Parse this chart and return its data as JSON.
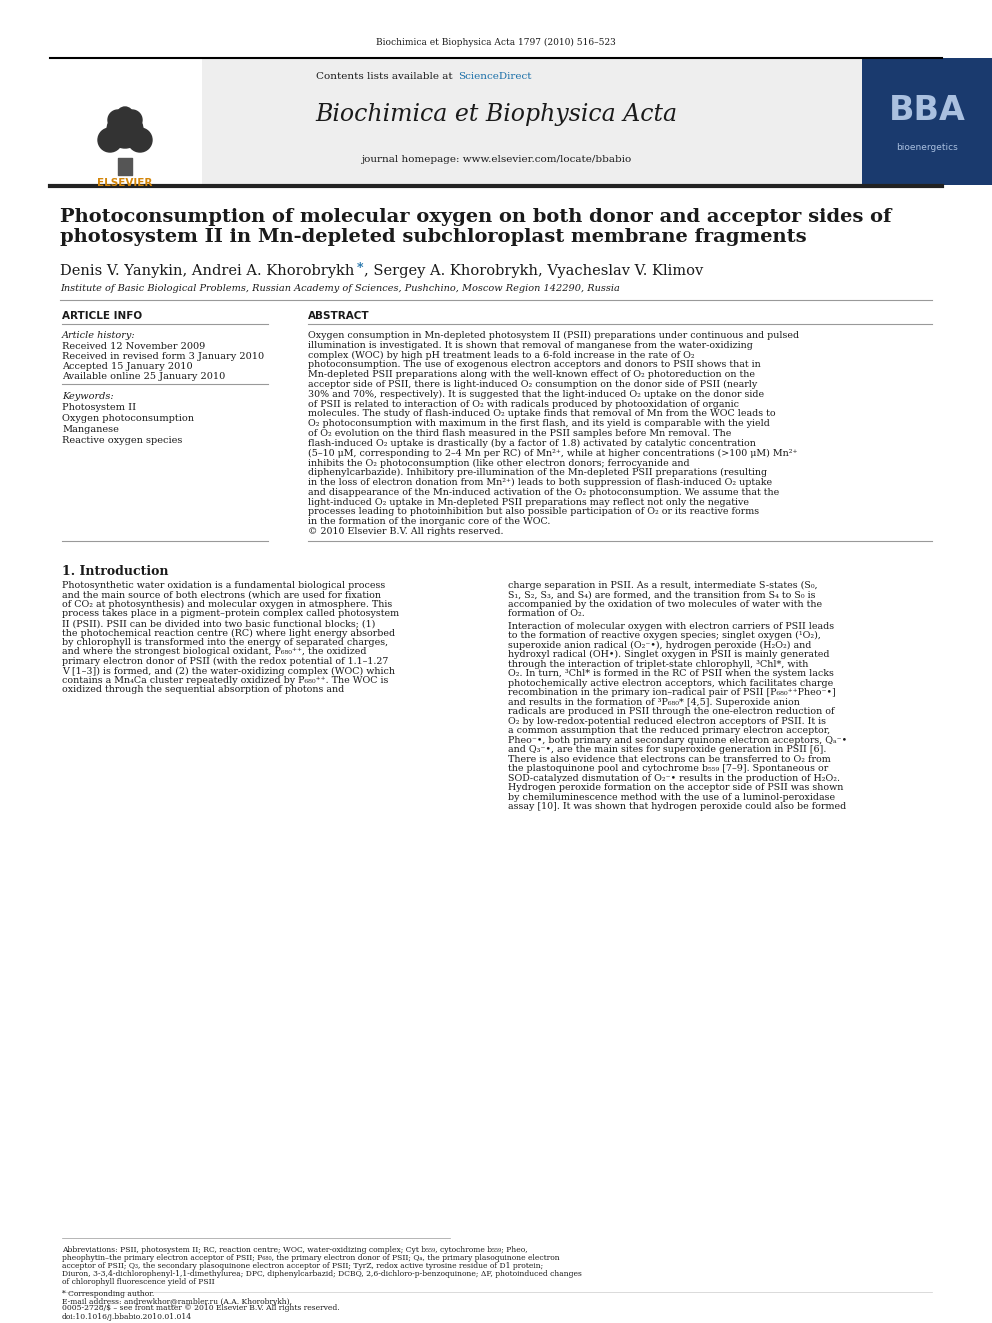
{
  "journal_info": "Biochimica et Biophysica Acta 1797 (2010) 516–523",
  "contents_line": "Contents lists available at ScienceDirect",
  "sciencedirect": "ScienceDirect",
  "journal_name": "Biochimica et Biophysica Acta",
  "journal_homepage": "journal homepage: www.elsevier.com/locate/bbabio",
  "title_line1": "Photoconsumption of molecular oxygen on both donor and acceptor sides of",
  "title_line2": "photosystem II in Mn-depleted subchloroplast membrane fragments",
  "authors_pre": "Denis V. Yanykin, Andrei A. Khorobrykh ",
  "authors_star": "*",
  "authors_post": ", Sergey A. Khorobrykh, Vyacheslav V. Klimov",
  "affiliation": "Institute of Basic Biological Problems, Russian Academy of Sciences, Pushchino, Moscow Region 142290, Russia",
  "article_info_header": "ARTICLE INFO",
  "abstract_header": "ABSTRACT",
  "article_history_label": "Article history:",
  "received": "Received 12 November 2009",
  "revised": "Received in revised form 3 January 2010",
  "accepted": "Accepted 15 January 2010",
  "available": "Available online 25 January 2010",
  "keywords_label": "Keywords:",
  "keywords": [
    "Photosystem II",
    "Oxygen photoconsumption",
    "Manganese",
    "Reactive oxygen species"
  ],
  "abstract_text": "Oxygen consumption in Mn-depleted photosystem II (PSII) preparations under continuous and pulsed illumination is investigated. It is shown that removal of manganese from the water-oxidizing complex (WOC) by high pH treatment leads to a 6-fold increase in the rate of O₂ photoconsumption. The use of exogenous electron acceptors and donors to PSII shows that in Mn-depleted PSII preparations along with the well-known effect of O₂ photoreduction on the acceptor side of PSII, there is light-induced O₂ consumption on the donor side of PSII (nearly 30% and 70%, respectively). It is suggested that the light-induced O₂ uptake on the donor side of PSII is related to interaction of O₂ with radicals produced by photooxidation of organic molecules. The study of flash-induced O₂ uptake finds that removal of Mn from the WOC leads to O₂ photoconsumption with maximum in the first flash, and its yield is comparable with the yield of O₂ evolution on the third flash measured in the PSII samples before Mn removal. The flash-induced O₂ uptake is drastically (by a factor of 1.8) activated by catalytic concentration (5–10 μM, corresponding to 2–4 Mn per RC) of Mn²⁺, while at higher concentrations (>100 μM) Mn²⁺ inhibits the O₂ photoconsumption (like other electron donors; ferrocyanide and diphenylcarbazide). Inhibitory pre-illumination of the Mn-depleted PSII preparations (resulting in the loss of electron donation from Mn²⁺) leads to both suppression of flash-induced O₂ uptake and disappearance of the Mn-induced activation of the O₂ photoconsumption. We assume that the light-induced O₂ uptake in Mn-depleted PSII preparations may reflect not only the negative processes leading to photoinhibition but also possible participation of O₂ or its reactive forms in the formation of the inorganic core of the WOC.\n© 2010 Elsevier B.V. All rights reserved.",
  "intro_header": "1. Introduction",
  "intro_col1": "    Photosynthetic water oxidation is a fundamental biological process and the main source of both electrons (which are used for fixation of CO₂ at photosynthesis) and molecular oxygen in atmosphere. This process takes place in a pigment–protein complex called photosystem II (PSII). PSII can be divided into two basic functional blocks; (1) the photochemical reaction centre (RC) where light energy absorbed by chlorophyll is transformed into the energy of separated charges, and where the strongest biological oxidant, P₆₈₀⁺⁺, the oxidized primary electron donor of PSII (with the redox potential of 1.1–1.27 V [1–3]) is formed, and (2) the water-oxidizing complex (WOC) which contains a Mn₄Ca cluster repeatedly oxidized by P₆₈₀⁺⁺. The WOC is oxidized through the sequential absorption of photons and",
  "intro_col2": "charge separation in PSII. As a result, intermediate S-states (S₀, S₁, S₂, S₃, and S₄) are formed, and the transition from S₄ to S₀ is accompanied by the oxidation of two molecules of water with the formation of O₂.\n    Interaction of molecular oxygen with electron carriers of PSII leads to the formation of reactive oxygen species; singlet oxygen (¹O₂), superoxide anion radical (O₂⁻•), hydrogen peroxide (H₂O₂) and hydroxyl radical (OH•). Singlet oxygen in PSII is mainly generated through the interaction of triplet-state chlorophyll, ³Chl*, with O₂. In turn, ³Chl* is formed in the RC of PSII when the system lacks photochemically active electron acceptors, which facilitates charge recombination in the primary ion–radical pair of PSII [P₆₈₀⁺⁺Pheo⁻•] and results in the formation of ³P₆₈₀* [4,5]. Superoxide anion radicals are produced in PSII through the one-electron reduction of O₂ by low-redox-potential reduced electron acceptors of PSII. It is a common assumption that the reduced primary electron acceptor, Pheo⁻•, both primary and secondary quinone electron acceptors, Qₐ⁻• and Q₃⁻•, are the main sites for superoxide generation in PSII [6]. There is also evidence that electrons can be transferred to O₂ from the plastoquinone pool and cytochrome b₅₅₉ [7–9]. Spontaneous or SOD-catalyzed dismutation of O₂⁻• results in the production of H₂O₂. Hydrogen peroxide formation on the acceptor side of PSII was shown by chemiluminescence method with the use of a luminol-peroxidase assay [10]. It was shown that hydrogen peroxide could also be formed",
  "footnote_abbrev": "Abbreviations: PSII, photosystem II; RC, reaction centre; WOC, water-oxidizing complex; Cyt b₅₅₉, cytochrome b₅₅₉; Pheo, pheophytin–the primary electron acceptor of PSII; P₆₈₀, the primary electron donor of PSII; Qₐ, the primary plasoquinone electron acceptor of PSII; Q₃, the secondary plasoquinone electron acceptor of PSII; TyrZ, redox active tyrosine residue of D1 protein; Diuron, 3-3,4-dichlorophenyl-1,1-dimethylurea; DPC, diphenylcarbazid; DCBQ, 2,6-dichloro-p-benzoquinone; ΔF, photoinduced changes of chlorophyll fluorescence yield of PSII",
  "footnote_corresponding": "* Corresponding author.",
  "footnote_email": "E-mail address: andrewkhor@rambler.ru (A.A. Khorobrykh).",
  "footer_left": "0005-2728/$ – see front matter © 2010 Elsevier B.V. All rights reserved.",
  "footer_doi": "doi:10.1016/j.bbabio.2010.01.014",
  "bg_color": "#ffffff",
  "header_bg": "#eeeeee",
  "blue_color": "#1a6fa8",
  "dark_color": "#1a1a1a",
  "gray_color": "#555555",
  "light_gray": "#cccccc",
  "bba_bg": "#1a3a6e",
  "bba_text": "#aac0e0"
}
